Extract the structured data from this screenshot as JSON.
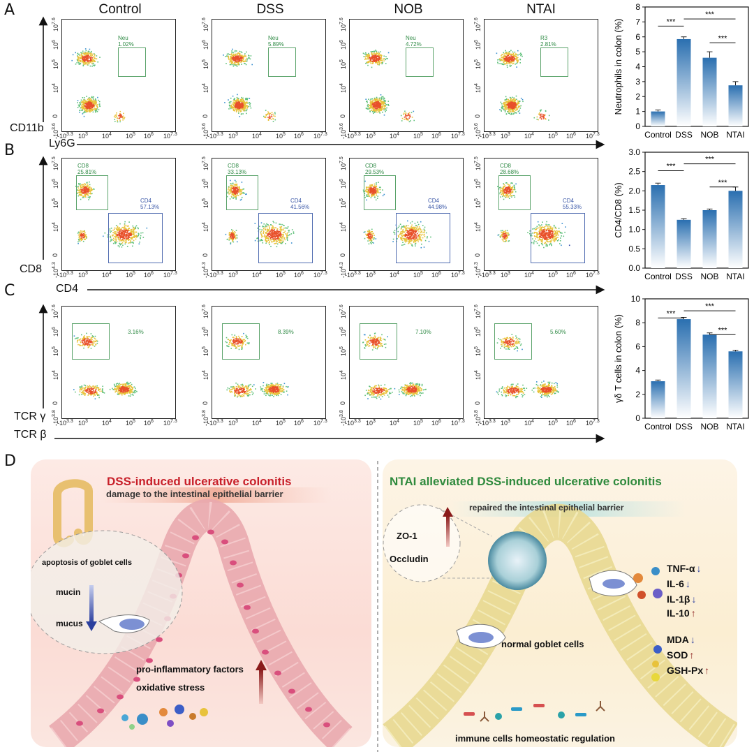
{
  "panels": {
    "A": "A",
    "B": "B",
    "C": "C",
    "D": "D"
  },
  "columns": [
    "Control",
    "DSS",
    "NOB",
    "NTAI"
  ],
  "flow": {
    "A": {
      "y_axis": "CD11b",
      "x_axis": "Ly6G",
      "y_ticks": [
        "10^7.6",
        "10^6",
        "10^5",
        "10^4",
        "0",
        "-10^3.6"
      ],
      "x_ticks": [
        "-10^3.3",
        "10^3",
        "10^4",
        "10^5",
        "10^6",
        "10^7.3"
      ],
      "gates": [
        {
          "name": "Neu",
          "value": "1.02%"
        },
        {
          "name": "Neu",
          "value": "5.89%"
        },
        {
          "name": "Neu",
          "value": "4.72%"
        },
        {
          "name": "R3",
          "value": "2.81%"
        }
      ]
    },
    "B": {
      "y_axis": "CD8",
      "x_axis": "CD4",
      "y_ticks": [
        "10^7.5",
        "10^6",
        "10^5",
        "10^4",
        "0",
        "-10^4.3"
      ],
      "x_ticks": [
        "-10^3.3",
        "10^3",
        "10^4",
        "10^5",
        "10^6",
        "10^7.3"
      ],
      "gates_cd8": [
        "25.81%",
        "33.13%",
        "29.53%",
        "28.68%"
      ],
      "gates_cd4": [
        "57.13%",
        "41.56%",
        "44.98%",
        "55.33%"
      ],
      "cd8_label": "CD8",
      "cd4_label": "CD4"
    },
    "C": {
      "y_axis": "TCR γ",
      "x_axis": "TCR β",
      "y_ticks": [
        "10^7.6",
        "10^6",
        "10^5",
        "10^4",
        "0",
        "-10^3.8"
      ],
      "x_ticks": [
        "-10^3.3",
        "10^3",
        "10^4",
        "10^5",
        "10^6",
        "10^7.3"
      ],
      "gates": [
        "3.16%",
        "8.39%",
        "7.10%",
        "5.60%"
      ]
    }
  },
  "chart_data": [
    {
      "type": "bar",
      "categories": [
        "Control",
        "DSS",
        "NOB",
        "NTAI"
      ],
      "values": [
        1.0,
        5.85,
        4.6,
        2.75
      ],
      "errors": [
        0.1,
        0.15,
        0.4,
        0.25
      ],
      "ylabel": "Neutrophils in colon (%)",
      "ylim": [
        0,
        8
      ],
      "yticks": [
        "0",
        "1",
        "2",
        "3",
        "4",
        "5",
        "6",
        "7",
        "8"
      ],
      "significance": [
        "***",
        "***",
        "***"
      ]
    },
    {
      "type": "bar",
      "categories": [
        "Control",
        "DSS",
        "NOB",
        "NTAI"
      ],
      "values": [
        2.15,
        1.25,
        1.5,
        2.0
      ],
      "errors": [
        0.05,
        0.03,
        0.03,
        0.1
      ],
      "ylabel": "CD4/CD8 (%)",
      "ylim": [
        0,
        3.0
      ],
      "yticks": [
        "0.0",
        "0.5",
        "1.0",
        "1.5",
        "2.0",
        "2.5",
        "3.0"
      ],
      "significance": [
        "***",
        "***",
        "***"
      ]
    },
    {
      "type": "bar",
      "categories": [
        "Control",
        "DSS",
        "NOB",
        "NTAI"
      ],
      "values": [
        3.1,
        8.3,
        7.0,
        5.6
      ],
      "errors": [
        0.1,
        0.15,
        0.15,
        0.1
      ],
      "ylabel": "γδ T cells in colon (%)",
      "ylim": [
        0,
        10
      ],
      "yticks": [
        "0",
        "2",
        "4",
        "6",
        "8",
        "10"
      ],
      "significance": [
        "***",
        "***",
        "***"
      ]
    }
  ],
  "diagram": {
    "left": {
      "title": "DSS-induced ulcerative colonitis",
      "banner": "damage to the intestinal epithelial barrier",
      "inset_title": "apoptosis of goblet cells",
      "mucin": "mucin",
      "mucus": "mucus",
      "factors1": "pro-inflammatory factors",
      "factors2": "oxidative stress"
    },
    "right": {
      "title": "NTAI alleviated DSS-induced ulcerative colonitis",
      "banner": "repaired the intestinal epithelial barrier",
      "zo1": "ZO-1",
      "occludin": "Occludin",
      "goblet": "normal goblet cells",
      "immune": "immune cells homeostatic regulation",
      "markers": [
        {
          "name": "TNF-α",
          "dir": "down"
        },
        {
          "name": "IL-6",
          "dir": "down"
        },
        {
          "name": "IL-1β",
          "dir": "down"
        },
        {
          "name": "IL-10",
          "dir": "up"
        },
        {
          "name": "MDA",
          "dir": "down"
        },
        {
          "name": "SOD",
          "dir": "up"
        },
        {
          "name": "GSH-Px",
          "dir": "up"
        }
      ]
    }
  },
  "colors": {
    "gate_green": "#5aa36a",
    "gate_blue": "#4f6bb0",
    "bar_top": "#2a6fb0",
    "left_bg": "#fbe3de",
    "right_bg": "#fbf2d8",
    "red_title": "#c8202a",
    "green_title": "#2f8a3d"
  }
}
